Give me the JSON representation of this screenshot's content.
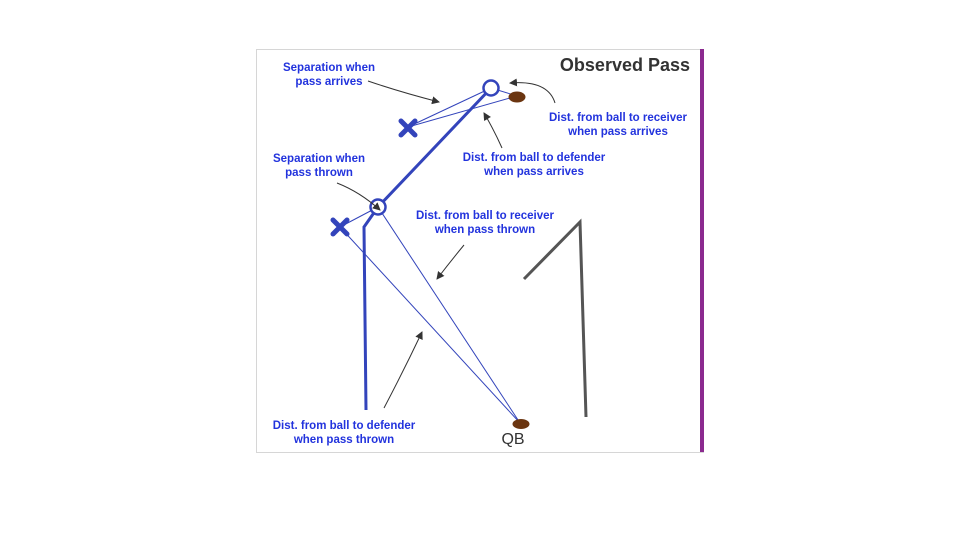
{
  "title": "Observed Pass",
  "labels": {
    "separation_arrives_1": "Separation when",
    "separation_arrives_2": "pass arrives",
    "ball_receiver_arrives_1": "Dist. from ball to receiver",
    "ball_receiver_arrives_2": "when pass arrives",
    "ball_defender_arrives_1": "Dist. from ball to defender",
    "ball_defender_arrives_2": "when pass arrives",
    "separation_thrown_1": "Separation when",
    "separation_thrown_2": "pass thrown",
    "ball_receiver_thrown_1": "Dist. from ball to receiver",
    "ball_receiver_thrown_2": "when pass thrown",
    "ball_defender_thrown_1": "Dist. from ball to defender",
    "ball_defender_thrown_2": "when pass thrown",
    "qb": "QB"
  },
  "colors": {
    "route": "#3344bb",
    "label": "#2233dd",
    "ball": "#6b3510",
    "border_accent": "#8b2a8f",
    "gray_route": "#555555"
  },
  "icons": {
    "defender": "x-marker-icon",
    "receiver": "circle-marker-icon",
    "ball": "football-icon"
  }
}
